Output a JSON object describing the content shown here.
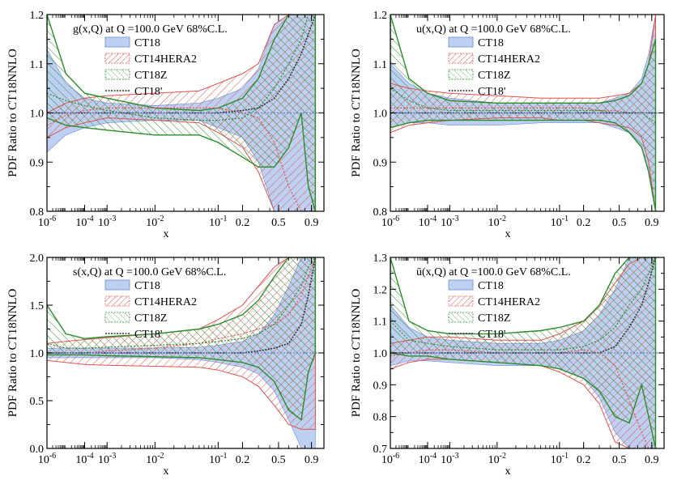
{
  "chart_data": [
    {
      "type": "area",
      "title": "g(x,Q) at Q =100.0 GeV 68%C.L.",
      "xlabel": "x",
      "ylabel": "PDF Ratio to CT18NNLO",
      "x_scale": "log",
      "xlim": [
        1e-06,
        1.0
      ],
      "ylim": [
        0.8,
        1.2
      ],
      "xticklabels": [
        "10-6",
        "10-4",
        "10-3",
        "10-2",
        "10-1",
        "0.2",
        "0.5",
        "0.9"
      ],
      "yticklabels": [
        "0.8",
        "0.9",
        "1.0",
        "1.1",
        "1.2"
      ],
      "legend": [
        "CT18",
        "CT14HERA2",
        "CT18Z",
        "CT18'"
      ],
      "legend_placement": "top-center",
      "x": [
        1e-06,
        1e-05,
        0.0001,
        0.001,
        0.01,
        0.05,
        0.1,
        0.2,
        0.3,
        0.45,
        0.6,
        0.75,
        0.85,
        0.93
      ],
      "series": [
        {
          "name": "CT18",
          "band": true,
          "upper": [
            1.13,
            1.06,
            1.03,
            1.02,
            1.015,
            1.02,
            1.03,
            1.05,
            1.09,
            1.18,
            1.3,
            1.4,
            1.45,
            1.5
          ],
          "lower": [
            0.92,
            0.955,
            0.97,
            0.98,
            0.985,
            0.985,
            0.97,
            0.95,
            0.9,
            0.8,
            0.7,
            0.6,
            0.55,
            0.5
          ]
        },
        {
          "name": "CT14HERA2",
          "band": true,
          "upper": [
            1.0,
            1.02,
            1.03,
            1.035,
            1.04,
            1.045,
            1.06,
            1.08,
            1.1,
            1.18,
            1.25,
            1.3,
            1.3,
            1.3
          ],
          "lower": [
            0.95,
            0.97,
            0.98,
            0.99,
            0.985,
            0.98,
            0.96,
            0.93,
            0.88,
            0.75,
            0.7,
            0.7,
            0.7,
            0.7
          ],
          "central": [
            0.975,
            0.995,
            1.005,
            1.01,
            1.01,
            1.01,
            1.01,
            1.0,
            0.99,
            0.94,
            0.85,
            0.78,
            0.75,
            0.72
          ]
        },
        {
          "name": "CT18Z",
          "band": true,
          "upper": [
            1.2,
            1.08,
            1.04,
            1.03,
            1.01,
            1.005,
            1.01,
            1.03,
            1.07,
            1.15,
            1.3,
            1.4,
            1.45,
            1.5
          ],
          "lower": [
            0.99,
            0.975,
            0.97,
            0.965,
            0.955,
            0.955,
            0.94,
            0.91,
            0.89,
            0.89,
            0.93,
            1.0,
            0.85,
            0.7
          ],
          "central": [
            1.04,
            1.025,
            1.015,
            1.005,
            0.99,
            0.985,
            0.985,
            0.99,
            1.01,
            1.05,
            1.1,
            1.15,
            1.2,
            1.25
          ]
        },
        {
          "name": "CT18'",
          "central": [
            1.0,
            1.0,
            1.0,
            1.0,
            1.0,
            1.0,
            1.0,
            1.005,
            1.01,
            1.03,
            1.07,
            1.12,
            1.16,
            1.2
          ]
        }
      ]
    },
    {
      "type": "area",
      "title": "u(x,Q) at Q =100.0 GeV 68%C.L.",
      "xlabel": "x",
      "ylabel": "PDF Ratio to CT18NNLO",
      "x_scale": "log",
      "xlim": [
        1e-06,
        1.0
      ],
      "ylim": [
        0.8,
        1.2
      ],
      "xticklabels": [
        "10-6",
        "10-4",
        "10-3",
        "10-2",
        "10-1",
        "0.2",
        "0.5",
        "0.9"
      ],
      "yticklabels": [
        "0.8",
        "0.9",
        "1.0",
        "1.1",
        "1.2"
      ],
      "legend": [
        "CT18",
        "CT14HERA2",
        "CT18Z",
        "CT18'"
      ],
      "legend_placement": "top-center",
      "x": [
        1e-06,
        1e-05,
        0.0001,
        0.001,
        0.01,
        0.05,
        0.1,
        0.2,
        0.3,
        0.45,
        0.6,
        0.75,
        0.85,
        0.93
      ],
      "series": [
        {
          "name": "CT18",
          "band": true,
          "upper": [
            1.1,
            1.06,
            1.04,
            1.03,
            1.02,
            1.02,
            1.02,
            1.02,
            1.02,
            1.03,
            1.04,
            1.07,
            1.12,
            1.2
          ],
          "lower": [
            0.97,
            0.98,
            0.98,
            0.975,
            0.975,
            0.98,
            0.98,
            0.98,
            0.98,
            0.97,
            0.96,
            0.93,
            0.88,
            0.8
          ]
        },
        {
          "name": "CT14HERA2",
          "band": true,
          "upper": [
            1.06,
            1.05,
            1.045,
            1.04,
            1.035,
            1.03,
            1.03,
            1.03,
            1.03,
            1.035,
            1.04,
            1.06,
            1.1,
            1.2
          ],
          "lower": [
            0.96,
            0.975,
            0.98,
            0.985,
            0.99,
            0.99,
            0.985,
            0.985,
            0.98,
            0.975,
            0.97,
            0.95,
            0.9,
            0.8
          ],
          "central": [
            1.01,
            1.01,
            1.01,
            1.01,
            1.01,
            1.01,
            1.01,
            1.01,
            1.005,
            1.005,
            1.0,
            1.0,
            1.0,
            1.0
          ]
        },
        {
          "name": "CT18Z",
          "band": true,
          "upper": [
            1.2,
            1.07,
            1.04,
            1.025,
            1.02,
            1.02,
            1.02,
            1.02,
            1.02,
            1.025,
            1.035,
            1.06,
            1.1,
            1.15
          ],
          "lower": [
            0.97,
            0.98,
            0.985,
            0.985,
            0.985,
            0.985,
            0.985,
            0.985,
            0.985,
            0.98,
            0.96,
            0.93,
            0.88,
            0.8
          ],
          "central": [
            1.05,
            1.025,
            1.01,
            1.005,
            1.005,
            1.005,
            1.005,
            1.005,
            1.005,
            1.0,
            1.0,
            1.0,
            0.99,
            0.98
          ]
        },
        {
          "name": "CT18'",
          "central": [
            1.0,
            1.0,
            1.0,
            1.0,
            1.0,
            1.0,
            1.0,
            1.0,
            1.0,
            1.0,
            1.0,
            1.0,
            1.0,
            1.0
          ]
        }
      ]
    },
    {
      "type": "area",
      "title": "s(x,Q) at Q =100.0 GeV 68%C.L.",
      "xlabel": "x",
      "ylabel": "PDF Ratio to CT18NNLO",
      "x_scale": "log",
      "xlim": [
        1e-06,
        1.0
      ],
      "ylim": [
        0.0,
        2.0
      ],
      "xticklabels": [
        "10-6",
        "10-4",
        "10-3",
        "10-2",
        "10-1",
        "0.2",
        "0.5",
        "0.9"
      ],
      "yticklabels": [
        "0.0",
        "0.5",
        "1.0",
        "1.5",
        "2.0"
      ],
      "legend": [
        "CT18",
        "CT14HERA2",
        "CT18Z",
        "CT18'"
      ],
      "legend_placement": "top-center",
      "x": [
        1e-06,
        1e-05,
        0.0001,
        0.001,
        0.01,
        0.05,
        0.1,
        0.2,
        0.3,
        0.45,
        0.6,
        0.75,
        0.85,
        0.93
      ],
      "series": [
        {
          "name": "CT18",
          "band": true,
          "upper": [
            1.05,
            1.05,
            1.05,
            1.05,
            1.05,
            1.06,
            1.08,
            1.12,
            1.2,
            1.4,
            1.7,
            2.0,
            2.0,
            2.0
          ],
          "lower": [
            0.95,
            0.95,
            0.95,
            0.95,
            0.95,
            0.93,
            0.9,
            0.85,
            0.78,
            0.6,
            0.3,
            0.0,
            0.0,
            0.0
          ]
        },
        {
          "name": "CT14HERA2",
          "band": true,
          "upper": [
            1.1,
            1.12,
            1.14,
            1.16,
            1.2,
            1.25,
            1.35,
            1.5,
            1.7,
            1.9,
            2.0,
            2.0,
            2.0,
            2.0
          ],
          "lower": [
            0.92,
            0.9,
            0.88,
            0.87,
            0.86,
            0.85,
            0.82,
            0.75,
            0.65,
            0.45,
            0.25,
            0.2,
            0.2,
            0.2
          ],
          "central": [
            1.0,
            1.0,
            1.0,
            1.02,
            1.05,
            1.1,
            1.15,
            1.2,
            1.25,
            1.3,
            1.4,
            1.6,
            1.8,
            2.0
          ]
        },
        {
          "name": "CT18Z",
          "band": true,
          "upper": [
            1.5,
            1.2,
            1.15,
            1.17,
            1.2,
            1.25,
            1.3,
            1.4,
            1.55,
            1.8,
            2.0,
            2.0,
            2.0,
            2.0
          ],
          "lower": [
            0.98,
            0.98,
            0.98,
            0.97,
            0.96,
            0.95,
            0.93,
            0.9,
            0.85,
            0.7,
            0.4,
            0.3,
            0.8,
            1.0
          ],
          "central": [
            1.1,
            1.05,
            1.05,
            1.06,
            1.08,
            1.1,
            1.12,
            1.15,
            1.2,
            1.3,
            1.5,
            1.7,
            1.9,
            2.0
          ]
        },
        {
          "name": "CT18'",
          "central": [
            1.0,
            1.0,
            1.0,
            1.0,
            1.0,
            1.0,
            1.0,
            1.0,
            1.02,
            1.05,
            1.1,
            1.3,
            1.6,
            2.0
          ]
        }
      ]
    },
    {
      "type": "area",
      "title": "ū(x,Q) at Q =100.0 GeV 68%C.L.",
      "xlabel": "x",
      "ylabel": "PDF Ratio to CT18NNLO",
      "x_scale": "log",
      "xlim": [
        1e-06,
        1.0
      ],
      "ylim": [
        0.7,
        1.3
      ],
      "xticklabels": [
        "10-6",
        "10-4",
        "10-3",
        "10-2",
        "10-1",
        "0.2",
        "0.5",
        "0.9"
      ],
      "yticklabels": [
        "0.7",
        "0.8",
        "0.9",
        "1.0",
        "1.1",
        "1.2",
        "1.3"
      ],
      "legend": [
        "CT18",
        "CT14HERA2",
        "CT18Z",
        "CT18'"
      ],
      "legend_placement": "top-center",
      "x": [
        1e-06,
        1e-05,
        0.0001,
        0.001,
        0.01,
        0.05,
        0.1,
        0.2,
        0.3,
        0.45,
        0.6,
        0.75,
        0.85,
        0.93
      ],
      "series": [
        {
          "name": "CT18",
          "band": true,
          "upper": [
            1.15,
            1.08,
            1.05,
            1.04,
            1.03,
            1.03,
            1.04,
            1.07,
            1.12,
            1.2,
            1.3,
            1.3,
            1.3,
            1.3
          ],
          "lower": [
            0.96,
            0.975,
            0.975,
            0.97,
            0.96,
            0.96,
            0.95,
            0.92,
            0.86,
            0.75,
            0.7,
            0.7,
            0.7,
            0.7
          ]
        },
        {
          "name": "CT14HERA2",
          "band": true,
          "upper": [
            1.03,
            1.04,
            1.05,
            1.05,
            1.04,
            1.04,
            1.06,
            1.1,
            1.15,
            1.22,
            1.28,
            1.3,
            1.3,
            1.3
          ],
          "lower": [
            0.95,
            0.97,
            0.98,
            0.98,
            0.97,
            0.96,
            0.94,
            0.9,
            0.84,
            0.72,
            0.7,
            0.7,
            0.7,
            0.7
          ],
          "central": [
            0.99,
            1.0,
            1.01,
            1.01,
            1.0,
            1.0,
            1.0,
            1.01,
            1.0,
            0.96,
            0.85,
            0.75,
            0.7,
            0.7
          ]
        },
        {
          "name": "CT18Z",
          "band": true,
          "upper": [
            1.3,
            1.1,
            1.07,
            1.06,
            1.06,
            1.07,
            1.08,
            1.1,
            1.15,
            1.25,
            1.3,
            1.3,
            1.3,
            1.3
          ],
          "lower": [
            1.0,
            0.99,
            0.99,
            0.98,
            0.97,
            0.96,
            0.95,
            0.92,
            0.88,
            0.8,
            0.78,
            0.9,
            0.8,
            0.7
          ],
          "central": [
            1.1,
            1.04,
            1.03,
            1.02,
            1.01,
            1.01,
            1.01,
            1.02,
            1.04,
            1.08,
            1.15,
            1.2,
            1.25,
            1.3
          ]
        },
        {
          "name": "CT18'",
          "central": [
            1.0,
            1.0,
            1.0,
            1.0,
            1.0,
            1.0,
            1.0,
            1.0,
            1.0,
            1.02,
            1.08,
            1.15,
            1.22,
            1.3
          ]
        }
      ]
    }
  ],
  "colors": {
    "CT18": "#a8c0ec",
    "CT18_edge": "#6c8fdb",
    "CT14HERA2": "#e0534f",
    "CT18Z": "#2a8c2a",
    "CT18prime": "#333333",
    "reference_line": "#5a7fd6"
  }
}
